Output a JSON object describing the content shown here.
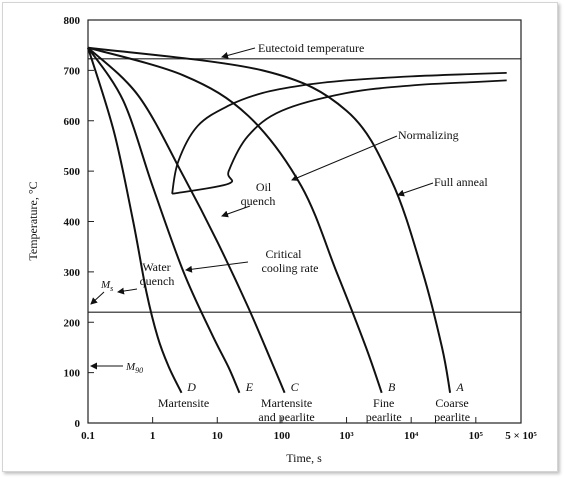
{
  "chart_data": {
    "type": "line",
    "xlabel": "Time, s",
    "ylabel": "Temperature, °C",
    "xscale": "log",
    "xlim": [
      0.1,
      500000
    ],
    "ylim": [
      0,
      800
    ],
    "yticks": [
      0,
      100,
      200,
      300,
      400,
      500,
      600,
      700,
      800
    ],
    "xticks": [
      {
        "value": 0.1,
        "label": "0.1"
      },
      {
        "value": 1,
        "label": "1"
      },
      {
        "value": 10,
        "label": "10"
      },
      {
        "value": 100,
        "label": "100"
      },
      {
        "value": 1000,
        "label": "10³"
      },
      {
        "value": 10000,
        "label": "10⁴"
      },
      {
        "value": 100000,
        "label": "10⁵"
      },
      {
        "value": 500000,
        "label": "5 × 10⁵"
      }
    ],
    "horizontal_lines": [
      {
        "y": 723,
        "label": "Eutectoid temperature"
      },
      {
        "y": 220,
        "label": "M_s"
      }
    ],
    "ms_label": "M",
    "ms_sub": "s",
    "m90_label": "M",
    "m90_sub": "90",
    "m90_y": 100,
    "curves": [
      {
        "letter": "D",
        "label": "Martensite",
        "x": [
          0.1,
          0.25,
          0.5,
          0.8,
          1.2,
          1.8,
          2.8
        ],
        "y": [
          745,
          580,
          400,
          260,
          170,
          110,
          60
        ]
      },
      {
        "letter": "E",
        "label": "",
        "x": [
          0.1,
          0.35,
          1,
          3,
          8,
          15,
          22
        ],
        "y": [
          745,
          640,
          470,
          300,
          180,
          110,
          60
        ]
      },
      {
        "letter": "C",
        "label": "Martensite\nand pearlite",
        "x": [
          0.1,
          0.6,
          3,
          10,
          30,
          70,
          110
        ],
        "y": [
          745,
          650,
          490,
          360,
          230,
          120,
          60
        ]
      },
      {
        "letter": "B",
        "label": "Fine\npearlite",
        "x": [
          0.1,
          3,
          30,
          200,
          700,
          2000,
          3500
        ],
        "y": [
          745,
          690,
          610,
          470,
          300,
          150,
          60
        ]
      },
      {
        "letter": "A",
        "label": "Coarse\npearlite",
        "x": [
          0.1,
          50,
          1000,
          5000,
          15000,
          30000,
          40000
        ],
        "y": [
          745,
          700,
          620,
          480,
          300,
          150,
          60
        ]
      }
    ],
    "transformation_curves": [
      {
        "name": "start",
        "x": [
          2,
          2.5,
          5,
          15,
          50,
          200,
          1000,
          10000,
          100000,
          300000
        ],
        "y": [
          455,
          520,
          590,
          630,
          655,
          670,
          680,
          688,
          693,
          695
        ]
      },
      {
        "name": "finish",
        "x": [
          2,
          15,
          15,
          30,
          100,
          1000,
          10000,
          100000,
          300000
        ],
        "y": [
          455,
          475,
          500,
          570,
          620,
          655,
          670,
          677,
          680
        ]
      }
    ],
    "annotations": [
      {
        "text": "Eutectoid temperature"
      },
      {
        "text": "Normalizing"
      },
      {
        "text": "Full anneal"
      },
      {
        "text": "Oil\nquench"
      },
      {
        "text": "Critical\ncooling rate"
      },
      {
        "text": "Water\nquench"
      }
    ]
  }
}
